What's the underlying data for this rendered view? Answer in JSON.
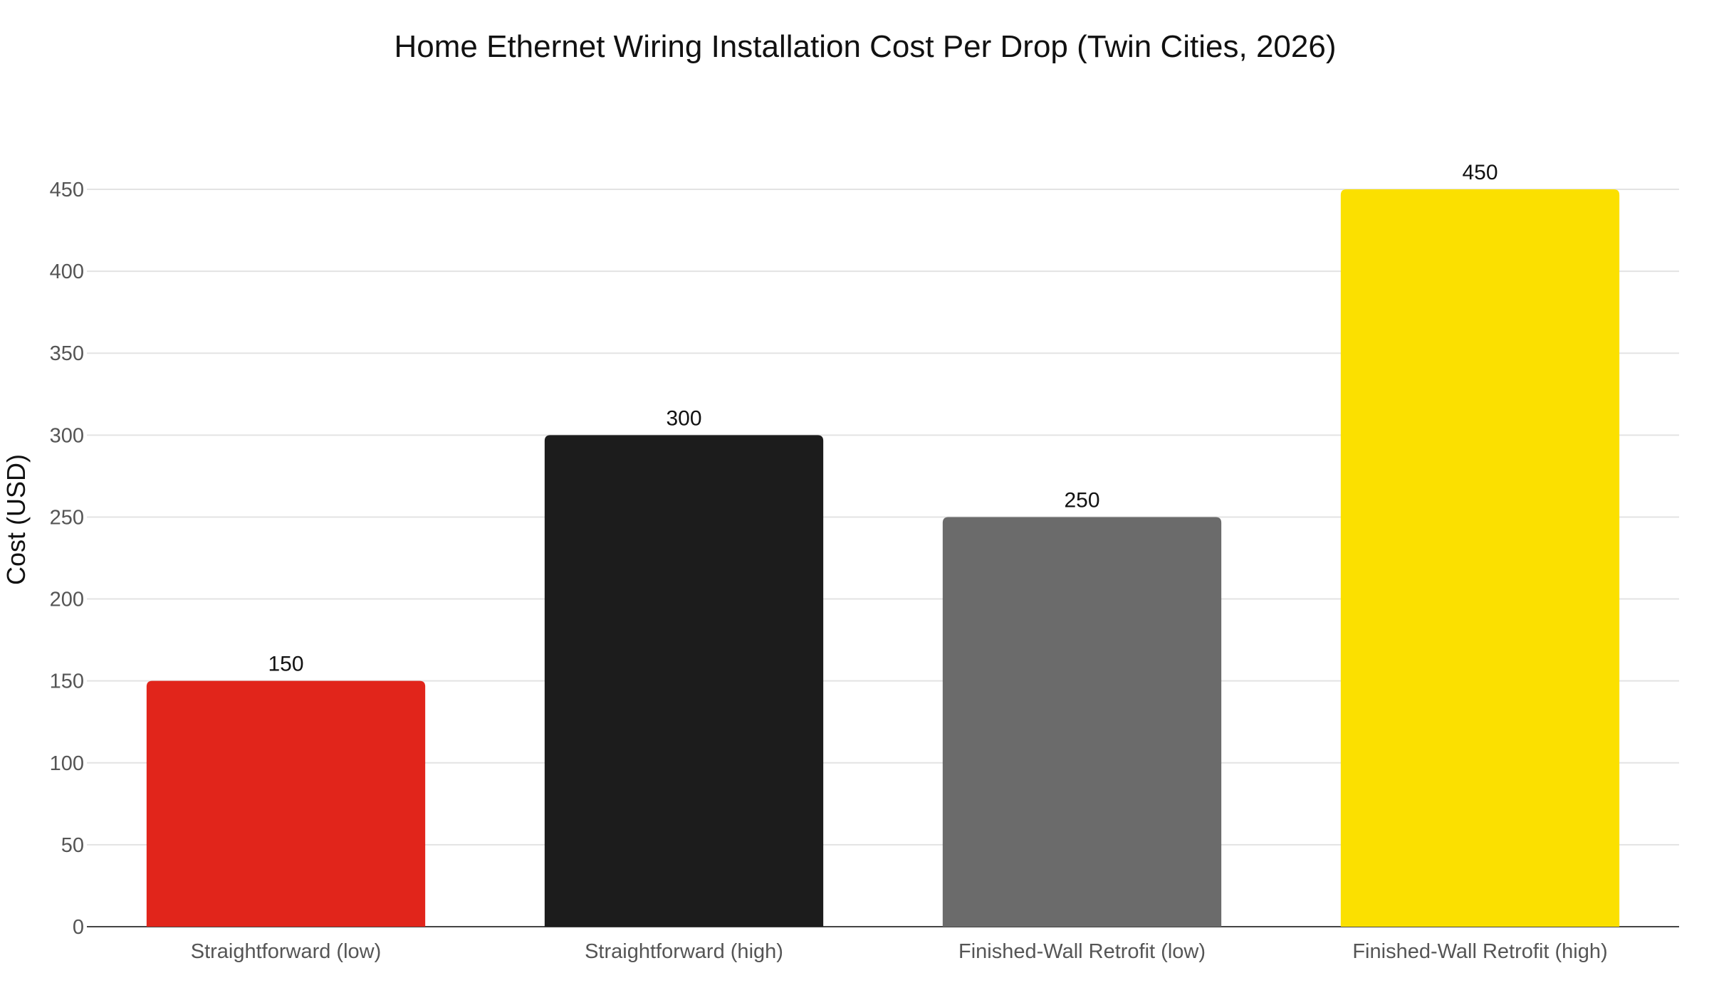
{
  "chart_data": {
    "type": "bar",
    "title": "Home Ethernet Wiring Installation Cost Per Drop (Twin Cities, 2026)",
    "xlabel": "",
    "ylabel": "Cost (USD)",
    "ylim": [
      0,
      450
    ],
    "yticks": [
      0,
      50,
      100,
      150,
      200,
      250,
      300,
      350,
      400,
      450
    ],
    "categories": [
      "Straightforward (low)",
      "Straightforward (high)",
      "Finished-Wall Retrofit (low)",
      "Finished-Wall Retrofit (high)"
    ],
    "values": [
      150,
      300,
      250,
      450
    ],
    "data_labels": [
      "150",
      "300",
      "250",
      "450"
    ],
    "colors": [
      "#e1251b",
      "#1c1c1c",
      "#6b6b6b",
      "#fbe000"
    ],
    "grid": true,
    "legend": "none"
  }
}
